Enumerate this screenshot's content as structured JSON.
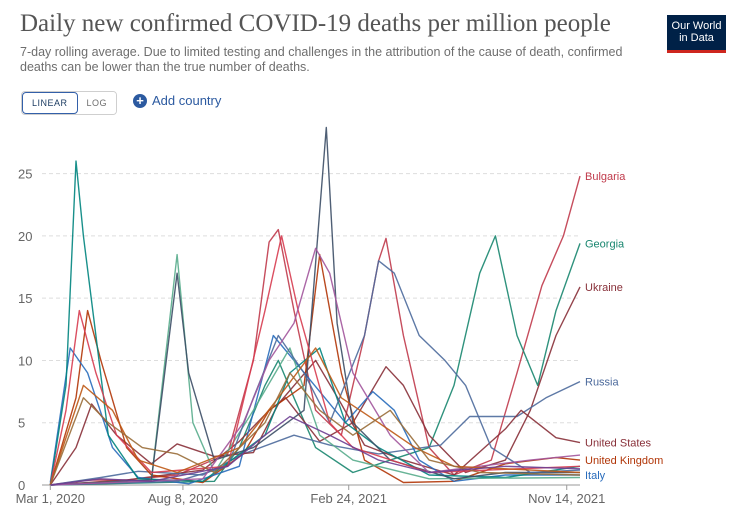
{
  "header": {
    "title": "Daily new confirmed COVID-19 deaths per million people",
    "subtitle": "7-day rolling average. Due to limited testing and challenges in the attribution of the cause of death, confirmed deaths can be lower than the true number of deaths."
  },
  "logo": {
    "line1": "Our World",
    "line2": "in Data"
  },
  "controls": {
    "linear_label": "LINEAR",
    "log_label": "LOG",
    "add_country_label": "Add country",
    "add_icon": "plus-circle-icon"
  },
  "chart_data": {
    "type": "line",
    "xlabel": "",
    "ylabel": "",
    "y_ticks": [
      0,
      5,
      10,
      15,
      20,
      25
    ],
    "ylim": [
      0,
      28.5
    ],
    "x_ticks": [
      "Mar 1, 2020",
      "Aug 8, 2020",
      "Feb 24, 2021",
      "Nov 14, 2021"
    ],
    "x_tick_dates": [
      "2020-03-01",
      "2020-08-08",
      "2021-02-24",
      "2021-11-14"
    ],
    "xlim": [
      "2020-02-20",
      "2021-11-30"
    ],
    "grid": true,
    "series": [
      {
        "name": "Bulgaria",
        "color": "#c03a4b",
        "labeled": true,
        "points": [
          [
            "2020-03-01",
            0
          ],
          [
            "2020-04-15",
            0.4
          ],
          [
            "2020-06-01",
            0.4
          ],
          [
            "2020-08-01",
            0.8
          ],
          [
            "2020-10-01",
            2.5
          ],
          [
            "2020-11-01",
            10
          ],
          [
            "2020-11-20",
            19.5
          ],
          [
            "2020-12-01",
            20.5
          ],
          [
            "2020-12-20",
            14
          ],
          [
            "2021-01-15",
            6
          ],
          [
            "2021-02-15",
            4
          ],
          [
            "2021-03-15",
            12
          ],
          [
            "2021-04-01",
            18
          ],
          [
            "2021-04-10",
            19.8
          ],
          [
            "2021-05-01",
            12
          ],
          [
            "2021-06-01",
            3
          ],
          [
            "2021-07-01",
            0.8
          ],
          [
            "2021-08-15",
            2
          ],
          [
            "2021-09-15",
            9
          ],
          [
            "2021-10-15",
            16
          ],
          [
            "2021-11-10",
            20
          ],
          [
            "2021-11-30",
            24.8
          ]
        ]
      },
      {
        "name": "Georgia",
        "color": "#18866f",
        "labeled": true,
        "points": [
          [
            "2020-03-01",
            0
          ],
          [
            "2020-09-15",
            0.3
          ],
          [
            "2020-10-15",
            3
          ],
          [
            "2020-11-15",
            8
          ],
          [
            "2020-12-01",
            10
          ],
          [
            "2020-12-20",
            7
          ],
          [
            "2021-01-15",
            3
          ],
          [
            "2021-03-01",
            1
          ],
          [
            "2021-04-15",
            2
          ],
          [
            "2021-06-01",
            3
          ],
          [
            "2021-07-01",
            8
          ],
          [
            "2021-08-01",
            17
          ],
          [
            "2021-08-20",
            20
          ],
          [
            "2021-09-15",
            12
          ],
          [
            "2021-10-10",
            8
          ],
          [
            "2021-11-01",
            14
          ],
          [
            "2021-11-30",
            19.4
          ]
        ]
      },
      {
        "name": "Ukraine",
        "color": "#883039",
        "labeled": true,
        "points": [
          [
            "2020-03-01",
            0
          ],
          [
            "2020-06-01",
            0.4
          ],
          [
            "2020-09-01",
            1.2
          ],
          [
            "2020-10-15",
            3.5
          ],
          [
            "2020-11-20",
            6
          ],
          [
            "2020-12-10",
            7
          ],
          [
            "2021-01-20",
            3.5
          ],
          [
            "2021-03-01",
            5
          ],
          [
            "2021-04-10",
            9.5
          ],
          [
            "2021-05-01",
            8
          ],
          [
            "2021-06-01",
            4
          ],
          [
            "2021-07-15",
            1
          ],
          [
            "2021-09-01",
            2
          ],
          [
            "2021-10-01",
            6
          ],
          [
            "2021-11-01",
            12
          ],
          [
            "2021-11-30",
            15.9
          ]
        ]
      },
      {
        "name": "Russia",
        "color": "#4c6a9c",
        "labeled": true,
        "points": [
          [
            "2020-03-01",
            0
          ],
          [
            "2020-05-01",
            0.6
          ],
          [
            "2020-06-15",
            1.1
          ],
          [
            "2020-09-01",
            0.8
          ],
          [
            "2020-10-20",
            2.5
          ],
          [
            "2020-12-20",
            4
          ],
          [
            "2021-02-01",
            3.2
          ],
          [
            "2021-04-01",
            2.5
          ],
          [
            "2021-06-15",
            3.2
          ],
          [
            "2021-07-20",
            5.5
          ],
          [
            "2021-09-15",
            5.5
          ],
          [
            "2021-10-20",
            7
          ],
          [
            "2021-11-30",
            8.3
          ]
        ]
      },
      {
        "name": "United States",
        "color": "#883039",
        "labeled": true,
        "points": [
          [
            "2020-03-01",
            0
          ],
          [
            "2020-04-01",
            3
          ],
          [
            "2020-04-20",
            6.5
          ],
          [
            "2020-05-20",
            4
          ],
          [
            "2020-07-01",
            1.7
          ],
          [
            "2020-08-01",
            3.3
          ],
          [
            "2020-09-15",
            2.3
          ],
          [
            "2020-11-01",
            2.6
          ],
          [
            "2020-12-01",
            6.5
          ],
          [
            "2021-01-15",
            10
          ],
          [
            "2021-02-15",
            6.5
          ],
          [
            "2021-03-15",
            3.2
          ],
          [
            "2021-05-01",
            2
          ],
          [
            "2021-07-01",
            0.8
          ],
          [
            "2021-09-01",
            4.5
          ],
          [
            "2021-09-20",
            6
          ],
          [
            "2021-11-01",
            3.8
          ],
          [
            "2021-11-30",
            3.4
          ]
        ]
      },
      {
        "name": "United Kingdom",
        "color": "#b13507",
        "labeled": true,
        "points": [
          [
            "2020-03-01",
            0
          ],
          [
            "2020-04-01",
            7
          ],
          [
            "2020-04-15",
            14
          ],
          [
            "2020-05-01",
            10
          ],
          [
            "2020-06-01",
            3
          ],
          [
            "2020-07-01",
            0.8
          ],
          [
            "2020-09-01",
            0.2
          ],
          [
            "2020-10-20",
            2.5
          ],
          [
            "2020-11-20",
            6
          ],
          [
            "2021-01-01",
            8
          ],
          [
            "2021-01-20",
            18.5
          ],
          [
            "2021-02-15",
            9
          ],
          [
            "2021-03-15",
            2
          ],
          [
            "2021-05-01",
            0.2
          ],
          [
            "2021-07-01",
            0.3
          ],
          [
            "2021-09-01",
            1.7
          ],
          [
            "2021-11-01",
            2.2
          ],
          [
            "2021-11-30",
            2
          ]
        ]
      },
      {
        "name": "Italy",
        "color": "#286bbb",
        "labeled": true,
        "points": [
          [
            "2020-03-01",
            0.2
          ],
          [
            "2020-03-25",
            11
          ],
          [
            "2020-04-15",
            9
          ],
          [
            "2020-05-15",
            3
          ],
          [
            "2020-06-15",
            0.6
          ],
          [
            "2020-08-15",
            0.1
          ],
          [
            "2020-10-15",
            1.5
          ],
          [
            "2020-11-25",
            12
          ],
          [
            "2020-12-20",
            10
          ],
          [
            "2021-01-20",
            7.5
          ],
          [
            "2021-02-20",
            5
          ],
          [
            "2021-03-25",
            7.5
          ],
          [
            "2021-04-20",
            6
          ],
          [
            "2021-05-20",
            2
          ],
          [
            "2021-07-01",
            0.3
          ],
          [
            "2021-09-01",
            0.8
          ],
          [
            "2021-11-30",
            0.8
          ]
        ]
      },
      {
        "name": "",
        "color": "#00847e",
        "labeled": false,
        "points": [
          [
            "2020-03-01",
            0
          ],
          [
            "2020-03-20",
            8
          ],
          [
            "2020-04-01",
            26
          ],
          [
            "2020-04-10",
            20
          ],
          [
            "2020-04-25",
            12
          ],
          [
            "2020-05-10",
            4
          ],
          [
            "2020-06-15",
            0.5
          ],
          [
            "2020-09-01",
            0.3
          ],
          [
            "2020-11-15",
            4
          ],
          [
            "2020-12-15",
            9
          ],
          [
            "2021-01-20",
            11
          ],
          [
            "2021-02-20",
            5
          ],
          [
            "2021-04-01",
            3
          ],
          [
            "2021-06-01",
            0.8
          ],
          [
            "2021-09-01",
            0.6
          ],
          [
            "2021-11-30",
            1.5
          ]
        ]
      },
      {
        "name": "",
        "color": "#58ac8c",
        "labeled": false,
        "points": [
          [
            "2020-03-01",
            0
          ],
          [
            "2020-07-01",
            0.4
          ],
          [
            "2020-08-01",
            18.5
          ],
          [
            "2020-08-20",
            5
          ],
          [
            "2020-09-15",
            1
          ],
          [
            "2020-11-01",
            6
          ],
          [
            "2020-12-15",
            11
          ],
          [
            "2021-01-20",
            4
          ],
          [
            "2021-03-01",
            2
          ],
          [
            "2021-06-01",
            0.5
          ],
          [
            "2021-11-30",
            0.6
          ]
        ]
      },
      {
        "name": "",
        "color": "#3c4e66",
        "labeled": false,
        "points": [
          [
            "2020-03-01",
            0
          ],
          [
            "2020-07-01",
            0.4
          ],
          [
            "2020-08-01",
            17
          ],
          [
            "2020-08-15",
            9
          ],
          [
            "2020-09-15",
            2
          ],
          [
            "2020-11-01",
            3
          ],
          [
            "2021-01-01",
            6
          ],
          [
            "2021-01-28",
            28.7
          ],
          [
            "2021-02-10",
            13
          ],
          [
            "2021-03-01",
            5
          ],
          [
            "2021-04-15",
            2
          ],
          [
            "2021-07-01",
            0.5
          ],
          [
            "2021-09-01",
            1
          ],
          [
            "2021-11-30",
            1
          ]
        ]
      },
      {
        "name": "",
        "color": "#4c6a9c",
        "labeled": false,
        "points": [
          [
            "2020-03-01",
            0
          ],
          [
            "2020-08-01",
            0.3
          ],
          [
            "2020-10-01",
            1.5
          ],
          [
            "2020-11-01",
            7
          ],
          [
            "2020-12-01",
            12
          ],
          [
            "2021-01-01",
            9
          ],
          [
            "2021-02-01",
            5
          ],
          [
            "2021-03-15",
            12
          ],
          [
            "2021-04-01",
            18
          ],
          [
            "2021-04-20",
            17
          ],
          [
            "2021-05-20",
            12
          ],
          [
            "2021-06-20",
            10
          ],
          [
            "2021-07-15",
            8
          ],
          [
            "2021-08-15",
            3
          ],
          [
            "2021-10-01",
            1
          ],
          [
            "2021-11-30",
            1.2
          ]
        ]
      },
      {
        "name": "",
        "color": "#d73c50",
        "labeled": false,
        "points": [
          [
            "2020-03-01",
            0
          ],
          [
            "2020-03-20",
            6
          ],
          [
            "2020-04-05",
            14
          ],
          [
            "2020-04-25",
            9
          ],
          [
            "2020-05-20",
            4
          ],
          [
            "2020-07-01",
            1
          ],
          [
            "2020-10-01",
            1.5
          ],
          [
            "2020-11-15",
            14
          ],
          [
            "2020-12-05",
            20
          ],
          [
            "2020-12-25",
            14
          ],
          [
            "2021-02-01",
            5
          ],
          [
            "2021-03-01",
            3
          ],
          [
            "2021-06-01",
            1
          ],
          [
            "2021-11-30",
            1.5
          ]
        ]
      },
      {
        "name": "",
        "color": "#a2559c",
        "labeled": false,
        "points": [
          [
            "2020-03-01",
            0
          ],
          [
            "2020-09-01",
            0.5
          ],
          [
            "2020-10-20",
            5
          ],
          [
            "2020-11-20",
            10
          ],
          [
            "2020-12-20",
            13
          ],
          [
            "2021-01-15",
            19
          ],
          [
            "2021-02-01",
            17
          ],
          [
            "2021-03-01",
            9
          ],
          [
            "2021-04-15",
            4
          ],
          [
            "2021-06-01",
            1
          ],
          [
            "2021-10-01",
            2
          ],
          [
            "2021-11-30",
            2.4
          ]
        ]
      },
      {
        "name": "",
        "color": "#be5915",
        "labeled": false,
        "points": [
          [
            "2020-03-01",
            0
          ],
          [
            "2020-04-10",
            8
          ],
          [
            "2020-05-15",
            6
          ],
          [
            "2020-06-15",
            2
          ],
          [
            "2020-08-01",
            1
          ],
          [
            "2020-10-15",
            3
          ],
          [
            "2020-12-01",
            7
          ],
          [
            "2021-01-15",
            11
          ],
          [
            "2021-02-15",
            7
          ],
          [
            "2021-04-01",
            5
          ],
          [
            "2021-05-15",
            3
          ],
          [
            "2021-07-01",
            1.5
          ],
          [
            "2021-11-30",
            1
          ]
        ]
      },
      {
        "name": "",
        "color": "#996d39",
        "labeled": false,
        "points": [
          [
            "2020-03-01",
            0
          ],
          [
            "2020-04-10",
            7
          ],
          [
            "2020-05-10",
            5
          ],
          [
            "2020-06-20",
            3
          ],
          [
            "2020-08-01",
            2.5
          ],
          [
            "2020-09-15",
            1
          ],
          [
            "2020-11-15",
            5
          ],
          [
            "2020-12-15",
            9
          ],
          [
            "2021-01-20",
            6
          ],
          [
            "2021-03-01",
            4
          ],
          [
            "2021-04-15",
            6
          ],
          [
            "2021-06-01",
            2
          ],
          [
            "2021-08-01",
            1
          ],
          [
            "2021-11-30",
            0.8
          ]
        ]
      },
      {
        "name": "",
        "color": "#6d3e91",
        "labeled": false,
        "points": [
          [
            "2020-03-01",
            0
          ],
          [
            "2020-05-01",
            0.5
          ],
          [
            "2020-07-01",
            0.3
          ],
          [
            "2020-10-01",
            1.5
          ],
          [
            "2020-11-15",
            4
          ],
          [
            "2020-12-15",
            5.5
          ],
          [
            "2021-02-01",
            4
          ],
          [
            "2021-04-01",
            2
          ],
          [
            "2021-06-01",
            1
          ],
          [
            "2021-09-01",
            1.5
          ],
          [
            "2021-11-30",
            1.3
          ]
        ]
      }
    ]
  }
}
